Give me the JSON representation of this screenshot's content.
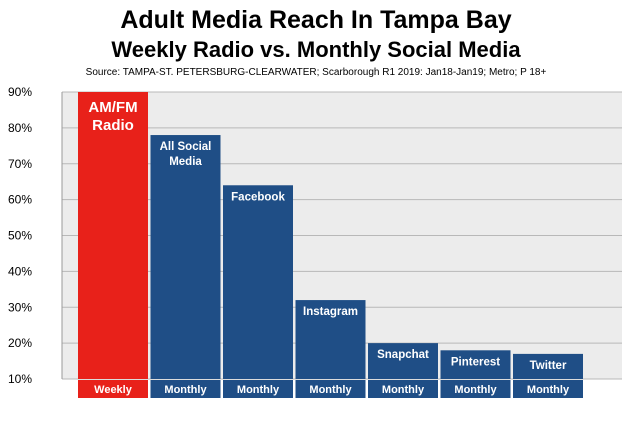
{
  "title": "Adult Media Reach In Tampa Bay",
  "subtitle": "Weekly Radio vs. Monthly Social Media",
  "source": "Source:  TAMPA-ST. PETERSBURG-CLEARWATER; Scarborough R1 2019: Jan18-Jan19; Metro; P 18+",
  "colors": {
    "radio": "#e8211a",
    "social": "#1f4e86",
    "plot_bg": "#ececec",
    "grid": "#b8b8b8"
  },
  "chart_data": {
    "type": "bar",
    "title": "Adult Media Reach In Tampa Bay",
    "subtitle": "Weekly Radio vs. Monthly Social Media",
    "ylim": [
      10,
      90
    ],
    "yticks": [
      "10%",
      "20%",
      "30%",
      "40%",
      "50%",
      "60%",
      "70%",
      "80%",
      "90%"
    ],
    "grid": true,
    "bars": [
      {
        "label": [
          "AM/FM",
          "Radio"
        ],
        "period": "Weekly",
        "value": 90,
        "color_key": "radio"
      },
      {
        "label": [
          "All Social",
          "Media"
        ],
        "period": "Monthly",
        "value": 78,
        "color_key": "social"
      },
      {
        "label": [
          "Facebook"
        ],
        "period": "Monthly",
        "value": 64,
        "color_key": "social"
      },
      {
        "label": [
          "Instagram"
        ],
        "period": "Monthly",
        "value": 32,
        "color_key": "social"
      },
      {
        "label": [
          "Snapchat"
        ],
        "period": "Monthly",
        "value": 20,
        "color_key": "social"
      },
      {
        "label": [
          "Pinterest"
        ],
        "period": "Monthly",
        "value": 18,
        "color_key": "social"
      },
      {
        "label": [
          "Twitter"
        ],
        "period": "Monthly",
        "value": 17,
        "color_key": "social"
      }
    ]
  }
}
